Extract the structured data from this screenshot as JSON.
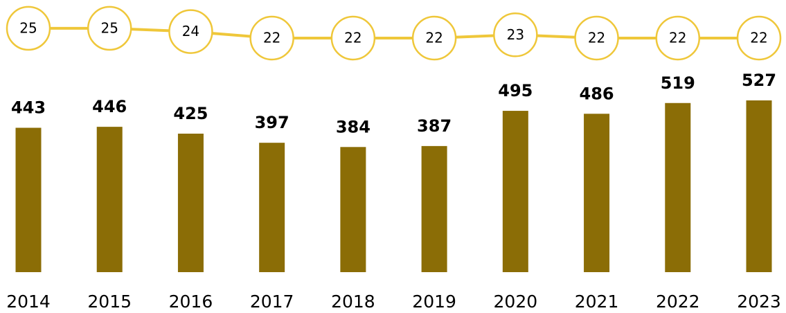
{
  "chart_data": {
    "type": "combo",
    "categories": [
      "2014",
      "2015",
      "2016",
      "2017",
      "2018",
      "2019",
      "2020",
      "2021",
      "2022",
      "2023"
    ],
    "series": [
      {
        "type": "bar",
        "color": "#8b6d06",
        "values": [
          443,
          446,
          425,
          397,
          384,
          387,
          495,
          486,
          519,
          527
        ]
      },
      {
        "type": "line",
        "color": "#efc73a",
        "values": [
          25,
          25,
          24,
          22,
          22,
          22,
          23,
          22,
          22,
          22
        ]
      }
    ]
  }
}
